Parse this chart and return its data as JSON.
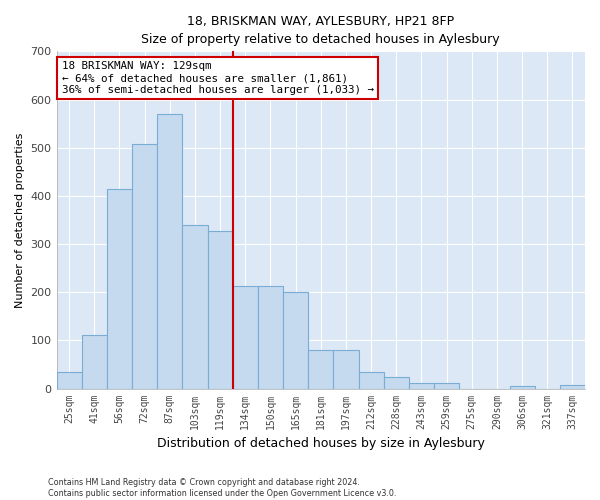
{
  "title1": "18, BRISKMAN WAY, AYLESBURY, HP21 8FP",
  "title2": "Size of property relative to detached houses in Aylesbury",
  "xlabel": "Distribution of detached houses by size in Aylesbury",
  "ylabel": "Number of detached properties",
  "categories": [
    "25sqm",
    "41sqm",
    "56sqm",
    "72sqm",
    "87sqm",
    "103sqm",
    "119sqm",
    "134sqm",
    "150sqm",
    "165sqm",
    "181sqm",
    "197sqm",
    "212sqm",
    "228sqm",
    "243sqm",
    "259sqm",
    "275sqm",
    "290sqm",
    "306sqm",
    "321sqm",
    "337sqm"
  ],
  "bar_heights": [
    35,
    112,
    415,
    507,
    570,
    340,
    328,
    212,
    212,
    200,
    80,
    80,
    35,
    25,
    12,
    12,
    0,
    0,
    5,
    0,
    8
  ],
  "bar_color": "#c5d9ef",
  "bar_edge_color": "#7aadd4",
  "vline_color": "#cc0000",
  "annotation_text": "18 BRISKMAN WAY: 129sqm\n← 64% of detached houses are smaller (1,861)\n36% of semi-detached houses are larger (1,033) →",
  "annotation_box_color": "#ffffff",
  "annotation_box_edge_color": "#cc0000",
  "ylim": [
    0,
    700
  ],
  "yticks": [
    0,
    100,
    200,
    300,
    400,
    500,
    600,
    700
  ],
  "background_color": "#ffffff",
  "plot_bg_color": "#dce8f5",
  "grid_color": "#ffffff",
  "footer1": "Contains HM Land Registry data © Crown copyright and database right 2024.",
  "footer2": "Contains public sector information licensed under the Open Government Licence v3.0."
}
